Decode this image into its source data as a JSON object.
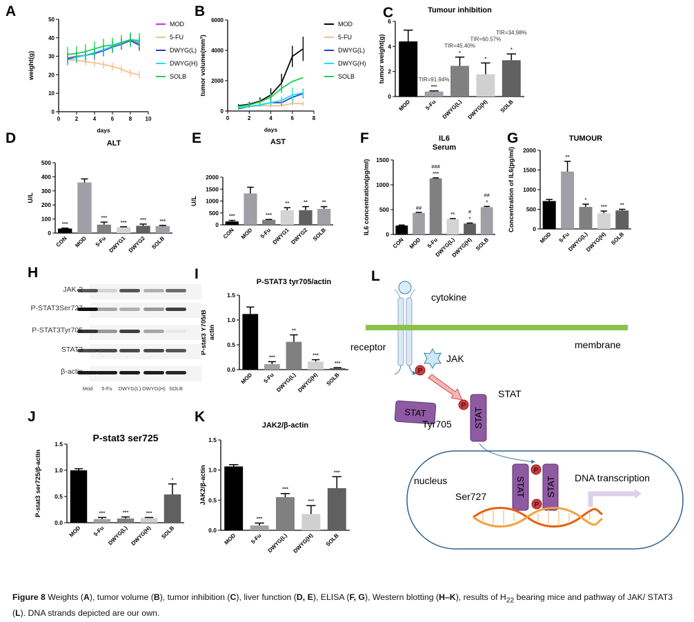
{
  "panels": {
    "A": "A",
    "B": "B",
    "C": "C",
    "D": "D",
    "E": "E",
    "F": "F",
    "G": "G",
    "H": "H",
    "I": "I",
    "J": "J",
    "K": "K",
    "L": "L"
  },
  "chart_data": [
    {
      "id": "A",
      "type": "line",
      "title": [],
      "xlabel": "days",
      "ylabel": [
        "weight(g)"
      ],
      "xlim": [
        0,
        10
      ],
      "xticks": [
        0,
        2,
        4,
        6,
        8,
        10
      ],
      "ylim": [
        0,
        50
      ],
      "yticks": [
        0,
        10,
        20,
        30,
        40,
        50
      ],
      "ytick_labels": [
        "0",
        "10",
        "20",
        "30",
        "40",
        "50"
      ],
      "x": [
        1,
        2,
        3,
        4,
        5,
        6,
        7,
        8,
        9
      ],
      "legend": "right",
      "series": [
        {
          "name": "MOD",
          "color": "#cc33cc",
          "values": [
            29,
            30,
            30.5,
            32,
            33.5,
            35,
            37,
            39,
            37
          ],
          "error": 3
        },
        {
          "name": "5-FU",
          "color": "#f5c08a",
          "values": [
            28,
            28,
            27,
            26.5,
            25.5,
            24.5,
            23,
            21,
            20
          ],
          "error": 2
        },
        {
          "name": "DWYG(L)",
          "color": "#3333cc",
          "values": [
            28.5,
            29.5,
            30.5,
            31.5,
            33,
            35,
            36.5,
            38.5,
            36
          ],
          "error": 3
        },
        {
          "name": "DWYG(H)",
          "color": "#22ddee",
          "values": [
            28,
            29.5,
            30.5,
            32,
            33.5,
            35.5,
            37,
            39,
            37.5
          ],
          "error": 3
        },
        {
          "name": "SOLB",
          "color": "#22cc55",
          "values": [
            31,
            31.5,
            32.5,
            34,
            35.5,
            36,
            37.5,
            39,
            38.5
          ],
          "error": 4
        }
      ]
    },
    {
      "id": "B",
      "type": "line",
      "title": [],
      "xlabel": "days",
      "ylabel": [
        "tumor volume(mm³)"
      ],
      "xlim": [
        0,
        8
      ],
      "xticks": [
        0,
        2,
        4,
        6,
        8
      ],
      "ylim": [
        0,
        6000
      ],
      "yticks": [
        0,
        2000,
        4000,
        6000
      ],
      "ytick_labels": [
        "0",
        "2000",
        "4000",
        "6000"
      ],
      "x": [
        1,
        2,
        3,
        4,
        5,
        6,
        7
      ],
      "legend": "right",
      "series": [
        {
          "name": "MOD",
          "color": "#000000",
          "values": [
            350,
            450,
            650,
            1050,
            1850,
            3600,
            4100
          ],
          "errors": [
            100,
            150,
            250,
            450,
            600,
            700,
            800
          ]
        },
        {
          "name": "5-FU",
          "color": "#f5c08a",
          "values": [
            250,
            300,
            350,
            350,
            350,
            500,
            480
          ],
          "errors": [
            50,
            60,
            80,
            80,
            80,
            150,
            150
          ]
        },
        {
          "name": "DWYG(L)",
          "color": "#3333cc",
          "values": [
            150,
            300,
            400,
            550,
            550,
            900,
            1150
          ],
          "errors": [
            50,
            80,
            80,
            150,
            150,
            200,
            300
          ]
        },
        {
          "name": "DWYG(H)",
          "color": "#22ddee",
          "values": [
            200,
            300,
            400,
            550,
            700,
            1050,
            1200
          ],
          "errors": [
            50,
            80,
            100,
            150,
            250,
            500,
            300
          ]
        },
        {
          "name": "SOLB",
          "color": "#22cc55",
          "values": [
            300,
            400,
            600,
            900,
            1500,
            1950,
            2200
          ],
          "errors": [
            80,
            150,
            150,
            250,
            300,
            0,
            0
          ]
        }
      ]
    },
    {
      "id": "C",
      "type": "bar",
      "title": [
        "Tumour inhibition"
      ],
      "ylabel": [
        "tumor weight(g)"
      ],
      "ylim": [
        0,
        6
      ],
      "yticks": [
        0,
        2,
        4,
        6
      ],
      "ytick_labels": [
        "0",
        "2",
        "4",
        "6"
      ],
      "categories": [
        "MOD",
        "5-Fu",
        "DWYG(L)",
        "DWYG(H)",
        "SOLB"
      ],
      "values": [
        4.4,
        0.4,
        2.45,
        1.78,
        2.9
      ],
      "errors": [
        0.9,
        0.05,
        0.7,
        0.9,
        0.5
      ],
      "annotations": [
        [],
        [
          "TIR=91.94%",
          "***"
        ],
        [
          "TIR=45.40%",
          "*"
        ],
        [
          "TIR=60.57%",
          "*"
        ],
        [
          "TIR=34.98%",
          "*"
        ]
      ],
      "colors": [
        "#000000",
        "#a0a0a8",
        "#808080",
        "#d0d0d0",
        "#606060"
      ]
    },
    {
      "id": "D",
      "type": "bar",
      "title": [
        "ALT"
      ],
      "ylabel": [
        "U/L"
      ],
      "ylim": [
        0,
        500
      ],
      "yticks": [
        0,
        100,
        200,
        300,
        400,
        500
      ],
      "ytick_labels": [
        "0",
        "100",
        "200",
        "300",
        "400",
        "500"
      ],
      "categories": [
        "CON",
        "MOD",
        "5-Fu",
        "DWYG1",
        "DWYG2",
        "SOLB"
      ],
      "values": [
        32,
        360,
        60,
        42,
        52,
        50
      ],
      "errors": [
        3,
        25,
        18,
        3,
        12,
        5
      ],
      "annotations": [
        [
          "***"
        ],
        [],
        [
          "***"
        ],
        [
          "***"
        ],
        [
          "***"
        ],
        [
          "***"
        ]
      ],
      "colors": [
        "#000000",
        "#a09fa6",
        "#808080",
        "#d4d4d4",
        "#606060",
        "#a09fa6"
      ]
    },
    {
      "id": "E",
      "type": "bar",
      "title": [
        "AST"
      ],
      "ylabel": [
        "U/L"
      ],
      "ylim": [
        0,
        2000
      ],
      "yticks": [
        0,
        500,
        1000,
        1500,
        2000
      ],
      "ytick_labels": [
        "0",
        "500",
        "1000",
        "1500",
        "2000"
      ],
      "categories": [
        "CON",
        "MOD",
        "5-Fu",
        "DWYG1",
        "DWYG2",
        "SOLB"
      ],
      "values": [
        140,
        1320,
        210,
        610,
        615,
        670
      ],
      "errors": [
        45,
        260,
        15,
        110,
        150,
        95
      ],
      "annotations": [
        [
          "***"
        ],
        [],
        [
          "***"
        ],
        [
          "**"
        ],
        [
          "**"
        ],
        [
          "**"
        ]
      ],
      "colors": [
        "#000000",
        "#a09fa6",
        "#808080",
        "#d4d4d4",
        "#606060",
        "#a09fa6"
      ]
    },
    {
      "id": "F",
      "type": "bar",
      "title": [
        "IL6",
        "Serum"
      ],
      "ylabel": [
        "IL6 concentration(pg/ml)"
      ],
      "ylim": [
        0,
        1500
      ],
      "yticks": [
        0,
        500,
        1000,
        1500
      ],
      "ytick_labels": [
        "0",
        "500",
        "1000",
        "1500"
      ],
      "categories": [
        "CON",
        "MOD",
        "5-Fu",
        "DWYG(L)",
        "DWYG(H)",
        "SOLB"
      ],
      "values": [
        180,
        435,
        1130,
        310,
        220,
        550
      ],
      "errors": [
        10,
        10,
        10,
        10,
        10,
        15
      ],
      "annotations": [
        [],
        [
          "##"
        ],
        [
          "###",
          "***"
        ],
        [
          "**"
        ],
        [
          "#",
          "*"
        ],
        [
          "##",
          "*"
        ]
      ],
      "colors": [
        "#000000",
        "#a09fa6",
        "#808080",
        "#d4d4d4",
        "#606060",
        "#a09fa6"
      ]
    },
    {
      "id": "G",
      "type": "bar",
      "title": [
        "TUMOUR"
      ],
      "ylabel": [
        "Concentration of IL6(pg/ml)"
      ],
      "ylim": [
        0,
        2000
      ],
      "yticks": [
        0,
        500,
        1000,
        1500,
        2000
      ],
      "ytick_labels": [
        "0",
        "500",
        "1000",
        "1500",
        "2000"
      ],
      "categories": [
        "MOD",
        "5-Fu",
        "DWYG(L)",
        "DWYG(H)",
        "SOLB"
      ],
      "values": [
        710,
        1460,
        560,
        400,
        470
      ],
      "errors": [
        40,
        260,
        70,
        55,
        30
      ],
      "annotations": [
        [],
        [
          "**"
        ],
        [
          "*"
        ],
        [
          "***"
        ],
        [
          "**"
        ]
      ],
      "colors": [
        "#000000",
        "#a09fa6",
        "#808080",
        "#d4d4d4",
        "#606060"
      ]
    },
    {
      "id": "I",
      "type": "bar",
      "title": [
        "P-STAT3 tyr705/actin"
      ],
      "ylabel": [
        "P-stat3 Y705/B",
        "actin"
      ],
      "ylim": [
        0,
        1.5
      ],
      "yticks": [
        0,
        0.5,
        1,
        1.5
      ],
      "ytick_labels": [
        "0.0",
        "0.5",
        "1.0",
        "1.5"
      ],
      "categories": [
        "MOD",
        "5-Fu",
        "DWYG(L)",
        "DWYG(H)",
        "SOLB"
      ],
      "values": [
        1.12,
        0.11,
        0.56,
        0.16,
        0.03
      ],
      "errors": [
        0.14,
        0.05,
        0.14,
        0.04,
        0.01
      ],
      "annotations": [
        [],
        [
          "***"
        ],
        [
          "**"
        ],
        [
          "***"
        ],
        [
          "***"
        ]
      ],
      "colors": [
        "#000000",
        "#a0a0a8",
        "#808080",
        "#d0d0d0",
        "#606060"
      ]
    },
    {
      "id": "J",
      "type": "bar",
      "title": [
        "P-stat3 ser725"
      ],
      "ylabel": [
        "P-stat3 ser725/β-actin"
      ],
      "ylim": [
        0,
        1.5
      ],
      "yticks": [
        0,
        0.5,
        1,
        1.5
      ],
      "ytick_labels": [
        "0.0",
        "0.5",
        "1.0",
        "1.5"
      ],
      "categories": [
        "MOD",
        "5-Fu",
        "DWYG(L)",
        "DWYG(H)",
        "SOLB"
      ],
      "values": [
        1.0,
        0.07,
        0.08,
        0.09,
        0.54
      ],
      "errors": [
        0.03,
        0.03,
        0.03,
        0.01,
        0.2
      ],
      "annotations": [
        [],
        [
          "***"
        ],
        [
          "***"
        ],
        [
          "***"
        ],
        [
          "*"
        ]
      ],
      "colors": [
        "#000000",
        "#a0a0a8",
        "#808080",
        "#d0d0d0",
        "#606060"
      ]
    },
    {
      "id": "K",
      "type": "bar",
      "title": [
        "JAK2/β-actin"
      ],
      "ylabel": [
        "JAK2/β-actin"
      ],
      "ylim": [
        0,
        1.5
      ],
      "yticks": [
        0,
        0.5,
        1,
        1.5
      ],
      "ytick_labels": [
        "0.0",
        "0.5",
        "1.0",
        "1.5"
      ],
      "categories": [
        "MOD",
        "5-Fu",
        "DWYG(L)",
        "DWYG(H)",
        "SOLB"
      ],
      "values": [
        1.06,
        0.08,
        0.55,
        0.27,
        0.7
      ],
      "errors": [
        0.03,
        0.04,
        0.06,
        0.14,
        0.19
      ],
      "annotations": [
        [],
        [
          "***"
        ],
        [
          "***"
        ],
        [
          "***"
        ],
        [
          "***"
        ]
      ],
      "colors": [
        "#000000",
        "#a0a0a8",
        "#808080",
        "#d0d0d0",
        "#606060"
      ]
    }
  ],
  "western_blot": {
    "rows": [
      "JAK-2",
      "P-STAT3Ser727",
      "P-STAT3Tyr705",
      "STAT3",
      "β-actin"
    ],
    "lanes": [
      "Mod",
      "5-Fu",
      "DWYG(L)",
      "DWYG(H)",
      "SOLB"
    ],
    "intensity": [
      [
        0.7,
        0.15,
        0.7,
        0.3,
        0.6
      ],
      [
        1.0,
        0.35,
        0.3,
        0.4,
        0.8
      ],
      [
        0.85,
        0.4,
        0.8,
        0.35,
        0.05
      ],
      [
        0.75,
        0.75,
        0.75,
        0.75,
        0.7
      ],
      [
        0.95,
        0.95,
        0.95,
        0.95,
        0.9
      ]
    ]
  },
  "pathway": {
    "cytokine": "cytokine",
    "receptor": "receptor",
    "membrane": "membrane",
    "jak": "JAK",
    "stat": "STAT",
    "stat_box": "STAT",
    "tyr": "Tyr705",
    "ser": "Ser727",
    "nucleus": "nucleus",
    "p": "P",
    "dna": "DNA transcription",
    "colors": {
      "membrane": "#8bc34a",
      "stat": "#8e5aa2",
      "phospho": "#d23b3b",
      "nucleus": "#2b5f8a"
    }
  },
  "caption": [
    {
      "t": "Figure 8",
      "b": true
    },
    {
      "t": " Weights ("
    },
    {
      "t": "A",
      "b": true
    },
    {
      "t": "), tumor volume ("
    },
    {
      "t": "B",
      "b": true
    },
    {
      "t": "), tumor inhibition ("
    },
    {
      "t": "C",
      "b": true
    },
    {
      "t": "), liver function ("
    },
    {
      "t": "D, E",
      "b": true
    },
    {
      "t": "), ELISA ("
    },
    {
      "t": "F, G",
      "b": true
    },
    {
      "t": "), Western blotting ("
    },
    {
      "t": "H–K",
      "b": true
    },
    {
      "t": "), results of H"
    },
    {
      "t": "22",
      "sub": true
    },
    {
      "t": " bearing mice and pathway of JAK/ STAT3 ("
    },
    {
      "t": "L",
      "b": true
    },
    {
      "t": "). DNA strands depicted are our own."
    }
  ]
}
